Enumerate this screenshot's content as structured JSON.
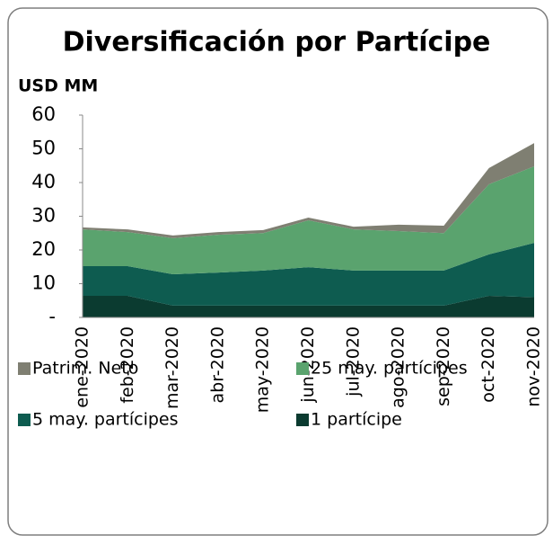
{
  "chart_data": {
    "type": "stacked_area",
    "title": "Diversificación por Partícipe",
    "ylabel": "USD MM",
    "categories": [
      "ene-2020",
      "feb-2020",
      "mar-2020",
      "abr-2020",
      "may-2020",
      "jun-2020",
      "jul-2020",
      "ago-2020",
      "sep-2020",
      "oct-2020",
      "nov-2020"
    ],
    "series": [
      {
        "name": "Patrim. Neto",
        "color": "#7f7f72",
        "values": [
          0.6,
          0.8,
          0.8,
          0.8,
          0.9,
          0.8,
          0.8,
          1.9,
          2.2,
          4.8,
          6.9
        ]
      },
      {
        "name": "25 may. partícipes",
        "color": "#5aa36e",
        "values": [
          10.9,
          10.1,
          10.7,
          11.2,
          11.1,
          13.9,
          12.2,
          11.7,
          11.1,
          20.8,
          22.7
        ]
      },
      {
        "name": "5 may. partícipes",
        "color": "#0e5c50",
        "values": [
          8.8,
          8.8,
          9.3,
          9.8,
          10.4,
          11.4,
          10.4,
          10.4,
          10.4,
          12.3,
          16.1
        ]
      },
      {
        "name": "1 partícipe",
        "color": "#0b3b30",
        "values": [
          6.4,
          6.4,
          3.5,
          3.5,
          3.5,
          3.5,
          3.5,
          3.5,
          3.5,
          6.4,
          6.0
        ]
      }
    ],
    "ylim": [
      0,
      60
    ],
    "yticks": [
      {
        "value": 0,
        "label": "-"
      },
      10,
      20,
      30,
      40,
      50,
      60
    ]
  }
}
